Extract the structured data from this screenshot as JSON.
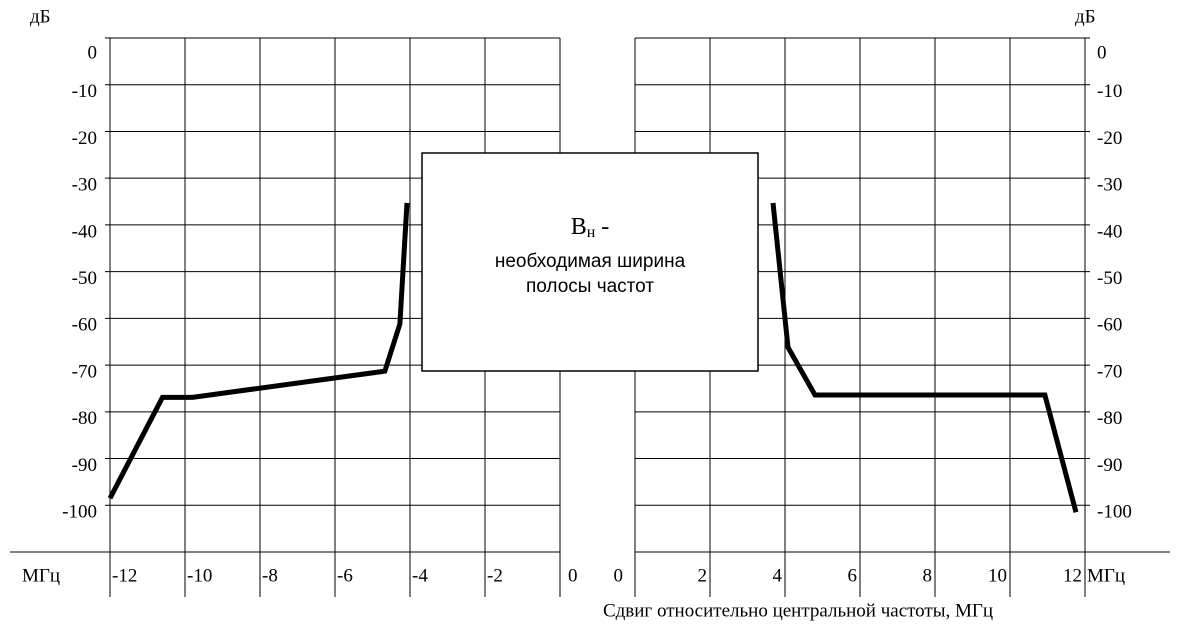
{
  "chart_data": [
    {
      "type": "line",
      "y_label": "дБ",
      "x_label": "МГц",
      "xlim": [
        -12,
        0
      ],
      "xticks": [
        -12,
        -10,
        -8,
        -6,
        -4,
        -2,
        0
      ],
      "ylim": [
        -110,
        0
      ],
      "yticks": [
        0,
        -10,
        -20,
        -30,
        -40,
        -50,
        -60,
        -70,
        -80,
        -90,
        -100
      ],
      "grid": true,
      "series": [
        {
          "color": "#000000",
          "x": [
            -12,
            -10.6,
            -9.8,
            -4.67,
            -4.27,
            -4.08
          ],
          "values": [
            -98.5,
            -76.9,
            -76.9,
            -71.3,
            -61.2,
            -35.3
          ]
        }
      ]
    },
    {
      "type": "line",
      "y_label": "дБ",
      "x_label": "МГц",
      "xlim": [
        0,
        12
      ],
      "xticks": [
        0,
        2,
        4,
        6,
        8,
        10,
        12
      ],
      "ylim": [
        -110,
        0
      ],
      "yticks": [
        0,
        -10,
        -20,
        -30,
        -40,
        -50,
        -60,
        -70,
        -80,
        -90,
        -100
      ],
      "grid": true,
      "series": [
        {
          "color": "#000000",
          "x": [
            3.68,
            4.08,
            4.8,
            10.93,
            11.76
          ],
          "values": [
            -35.3,
            -66.2,
            -76.4,
            -76.4,
            -101.5
          ]
        }
      ]
    }
  ],
  "annotation": {
    "main": "B",
    "sub": "н",
    "suffix": " -",
    "lines": [
      "необходимая ширина",
      "полосы частот"
    ]
  },
  "caption": "Сдвиг относительно центральной частоты, МГц"
}
